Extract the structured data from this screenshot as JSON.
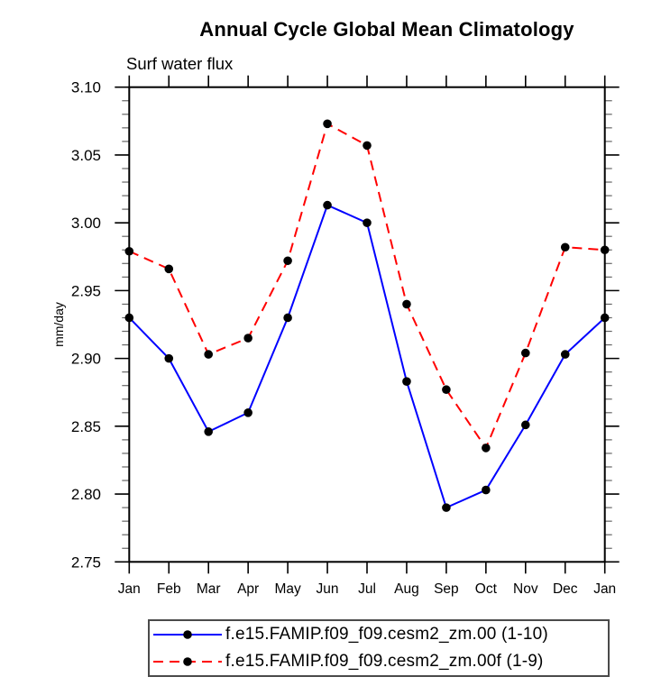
{
  "chart_data": {
    "type": "line",
    "title": "Annual Cycle Global Mean Climatology",
    "subtitle": "Surf water flux",
    "ylabel": "mm/day",
    "xlabel": "",
    "categories": [
      "Jan",
      "Feb",
      "Mar",
      "Apr",
      "May",
      "Jun",
      "Jul",
      "Aug",
      "Sep",
      "Oct",
      "Nov",
      "Dec",
      "Jan"
    ],
    "series": [
      {
        "name": "f.e15.FAMIP.f09_f09.cesm2_zm.00 (1-10)",
        "color": "#0000ff",
        "line_style": "solid",
        "marker": "filled-circle",
        "marker_color": "#000000",
        "values": [
          2.93,
          2.9,
          2.846,
          2.86,
          2.93,
          3.013,
          3.0,
          2.883,
          2.79,
          2.803,
          2.851,
          2.903,
          2.93
        ]
      },
      {
        "name": "f.e15.FAMIP.f09_f09.cesm2_zm.00f (1-9)",
        "color": "#ff0000",
        "line_style": "dashed",
        "marker": "filled-circle",
        "marker_color": "#000000",
        "values": [
          2.979,
          2.966,
          2.903,
          2.915,
          2.972,
          3.073,
          3.057,
          2.94,
          2.877,
          2.834,
          2.904,
          2.982,
          2.98
        ]
      }
    ],
    "ylim": [
      2.75,
      3.1
    ],
    "yticks": [
      2.75,
      2.8,
      2.85,
      2.9,
      2.95,
      3.0,
      3.05,
      3.1
    ],
    "ytick_labels": [
      "2.75",
      "2.80",
      "2.85",
      "2.90",
      "2.95",
      "3.00",
      "3.05",
      "3.10"
    ],
    "minor_tick_interval": 0.01,
    "grid": false,
    "legend_position": "bottom",
    "axis_color": "#000000"
  }
}
